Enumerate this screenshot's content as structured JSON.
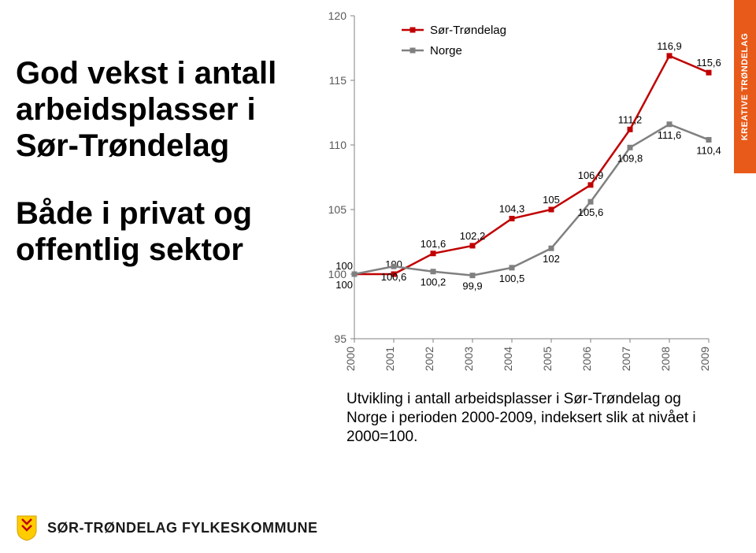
{
  "title1": "God vekst i antall arbeidsplasser i Sør-Trøndelag",
  "title2": "Både i privat og offentlig sektor",
  "caption": "Utvikling i antall arbeidsplasser i Sør-Trøndelag og Norge i perioden 2000-2009, indeksert slik at nivået i 2000=100.",
  "sidebar_label": "KREATIVE TRØNDELAG",
  "footer_name": "SØR-TRØNDELAG FYLKESKOMMUNE",
  "chart": {
    "type": "line",
    "years": [
      "2000",
      "2001",
      "2002",
      "2003",
      "2004",
      "2005",
      "2006",
      "2007",
      "2008",
      "2009"
    ],
    "ylim": [
      95,
      120
    ],
    "ytick_step": 5,
    "yticks": [
      95,
      100,
      105,
      110,
      115,
      120
    ],
    "series": [
      {
        "name": "Sør-Trøndelag",
        "color": "#c00000",
        "marker": "square",
        "values": [
          100,
          100,
          101.6,
          102.2,
          104.3,
          105.0,
          106.9,
          111.2,
          116.9,
          115.6
        ]
      },
      {
        "name": "Norge",
        "color": "#808080",
        "marker": "square",
        "values": [
          100,
          100.6,
          100.2,
          99.9,
          100.5,
          102.0,
          105.6,
          109.8,
          111.6,
          110.4
        ]
      }
    ],
    "legend_items": [
      "Sør-Trøndelag",
      "Norge"
    ],
    "axis_color": "#808080",
    "grid_color": "#bfbfbf",
    "background_color": "#ffffff",
    "line_width": 2.5,
    "marker_size": 7,
    "label_fontsize": 15,
    "tick_fontsize": 14,
    "legend_fontsize": 15,
    "datalabel_fontsize": 13,
    "datalabel_color": "#000000"
  }
}
